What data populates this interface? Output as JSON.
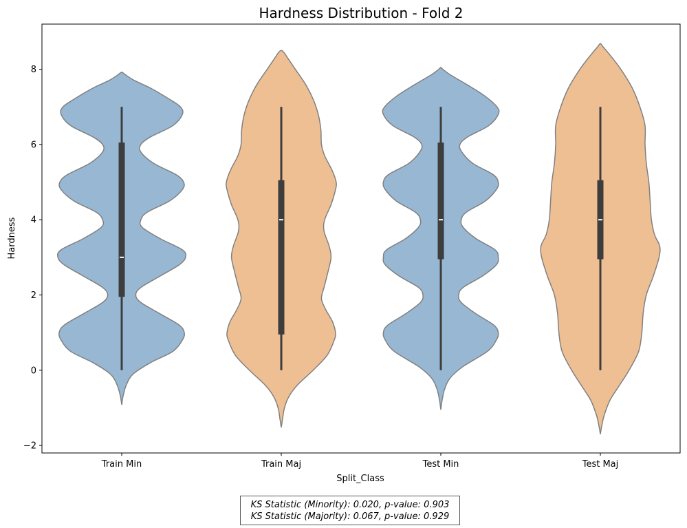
{
  "chart_data": {
    "type": "violin",
    "title": "Hardness Distribution - Fold 2",
    "xlabel": "Split_Class",
    "ylabel": "Hardness",
    "ylim": [
      -2.2,
      9.2
    ],
    "yticks": [
      -2,
      0,
      2,
      4,
      6,
      8
    ],
    "categories": [
      "Train Min",
      "Train Maj",
      "Test Min",
      "Test Maj"
    ],
    "colors": [
      "#97b7d3",
      "#efbf94"
    ],
    "outline_color": "#808080",
    "violins": [
      {
        "category": "Train Min",
        "color_index": 0,
        "box": {
          "min": 0,
          "q1": 1.95,
          "median": 3,
          "q3": 6.05,
          "max": 7
        },
        "profile": [
          [
            -0.92,
            0.0
          ],
          [
            -0.7,
            0.02
          ],
          [
            -0.4,
            0.07
          ],
          [
            -0.1,
            0.18
          ],
          [
            0.2,
            0.45
          ],
          [
            0.5,
            0.8
          ],
          [
            0.8,
            0.95
          ],
          [
            1.0,
            0.98
          ],
          [
            1.2,
            0.9
          ],
          [
            1.5,
            0.6
          ],
          [
            1.8,
            0.3
          ],
          [
            2.0,
            0.22
          ],
          [
            2.2,
            0.3
          ],
          [
            2.5,
            0.6
          ],
          [
            2.8,
            0.9
          ],
          [
            3.0,
            1.0
          ],
          [
            3.2,
            0.95
          ],
          [
            3.5,
            0.6
          ],
          [
            3.8,
            0.32
          ],
          [
            4.0,
            0.3
          ],
          [
            4.2,
            0.4
          ],
          [
            4.5,
            0.75
          ],
          [
            4.8,
            0.95
          ],
          [
            5.0,
            0.97
          ],
          [
            5.2,
            0.85
          ],
          [
            5.5,
            0.5
          ],
          [
            5.8,
            0.3
          ],
          [
            6.0,
            0.3
          ],
          [
            6.2,
            0.45
          ],
          [
            6.5,
            0.8
          ],
          [
            6.8,
            0.95
          ],
          [
            7.0,
            0.92
          ],
          [
            7.2,
            0.75
          ],
          [
            7.5,
            0.45
          ],
          [
            7.7,
            0.2
          ],
          [
            7.85,
            0.06
          ],
          [
            7.92,
            0.0
          ]
        ]
      },
      {
        "category": "Train Maj",
        "color_index": 1,
        "box": {
          "min": 0,
          "q1": 0.95,
          "median": 4,
          "q3": 5.05,
          "max": 7
        },
        "profile": [
          [
            -1.52,
            0.0
          ],
          [
            -1.3,
            0.02
          ],
          [
            -1.0,
            0.05
          ],
          [
            -0.7,
            0.12
          ],
          [
            -0.4,
            0.25
          ],
          [
            0.0,
            0.5
          ],
          [
            0.4,
            0.72
          ],
          [
            0.8,
            0.83
          ],
          [
            1.0,
            0.85
          ],
          [
            1.3,
            0.8
          ],
          [
            1.6,
            0.7
          ],
          [
            1.9,
            0.63
          ],
          [
            2.2,
            0.67
          ],
          [
            2.6,
            0.73
          ],
          [
            3.0,
            0.78
          ],
          [
            3.3,
            0.75
          ],
          [
            3.7,
            0.67
          ],
          [
            4.0,
            0.68
          ],
          [
            4.4,
            0.78
          ],
          [
            4.8,
            0.85
          ],
          [
            5.0,
            0.86
          ],
          [
            5.3,
            0.8
          ],
          [
            5.7,
            0.68
          ],
          [
            6.0,
            0.63
          ],
          [
            6.4,
            0.62
          ],
          [
            6.8,
            0.58
          ],
          [
            7.2,
            0.5
          ],
          [
            7.6,
            0.38
          ],
          [
            8.0,
            0.22
          ],
          [
            8.3,
            0.1
          ],
          [
            8.45,
            0.04
          ],
          [
            8.5,
            0.0
          ]
        ]
      },
      {
        "category": "Test Min",
        "color_index": 0,
        "box": {
          "min": 0,
          "q1": 2.95,
          "median": 4,
          "q3": 6.05,
          "max": 7
        },
        "profile": [
          [
            -1.05,
            0.0
          ],
          [
            -0.8,
            0.02
          ],
          [
            -0.5,
            0.06
          ],
          [
            -0.2,
            0.15
          ],
          [
            0.1,
            0.35
          ],
          [
            0.5,
            0.73
          ],
          [
            0.8,
            0.87
          ],
          [
            1.0,
            0.9
          ],
          [
            1.2,
            0.83
          ],
          [
            1.5,
            0.55
          ],
          [
            1.8,
            0.32
          ],
          [
            2.0,
            0.28
          ],
          [
            2.2,
            0.35
          ],
          [
            2.5,
            0.65
          ],
          [
            2.8,
            0.87
          ],
          [
            3.0,
            0.9
          ],
          [
            3.2,
            0.85
          ],
          [
            3.5,
            0.55
          ],
          [
            3.8,
            0.35
          ],
          [
            4.0,
            0.32
          ],
          [
            4.2,
            0.4
          ],
          [
            4.5,
            0.7
          ],
          [
            4.8,
            0.87
          ],
          [
            5.0,
            0.9
          ],
          [
            5.2,
            0.82
          ],
          [
            5.5,
            0.5
          ],
          [
            5.8,
            0.33
          ],
          [
            6.0,
            0.3
          ],
          [
            6.2,
            0.42
          ],
          [
            6.5,
            0.75
          ],
          [
            6.8,
            0.9
          ],
          [
            7.0,
            0.88
          ],
          [
            7.3,
            0.68
          ],
          [
            7.6,
            0.4
          ],
          [
            7.85,
            0.15
          ],
          [
            8.0,
            0.03
          ],
          [
            8.05,
            0.0
          ]
        ]
      },
      {
        "category": "Test Maj",
        "color_index": 1,
        "box": {
          "min": 0,
          "q1": 2.95,
          "median": 4,
          "q3": 5.05,
          "max": 7
        },
        "profile": [
          [
            -1.7,
            0.0
          ],
          [
            -1.5,
            0.02
          ],
          [
            -1.2,
            0.06
          ],
          [
            -0.8,
            0.15
          ],
          [
            -0.4,
            0.3
          ],
          [
            0.0,
            0.45
          ],
          [
            0.5,
            0.6
          ],
          [
            1.0,
            0.65
          ],
          [
            1.5,
            0.67
          ],
          [
            2.0,
            0.72
          ],
          [
            2.5,
            0.83
          ],
          [
            3.0,
            0.92
          ],
          [
            3.3,
            0.93
          ],
          [
            3.6,
            0.85
          ],
          [
            4.0,
            0.8
          ],
          [
            4.5,
            0.78
          ],
          [
            5.0,
            0.76
          ],
          [
            5.5,
            0.72
          ],
          [
            6.0,
            0.7
          ],
          [
            6.5,
            0.7
          ],
          [
            7.0,
            0.62
          ],
          [
            7.5,
            0.5
          ],
          [
            8.0,
            0.32
          ],
          [
            8.4,
            0.14
          ],
          [
            8.6,
            0.04
          ],
          [
            8.68,
            0.0
          ]
        ]
      }
    ]
  },
  "annotation": {
    "line1": "KS Statistic (Minority): 0.020, p-value: 0.903",
    "line2": "KS Statistic (Majority): 0.067, p-value: 0.929"
  }
}
